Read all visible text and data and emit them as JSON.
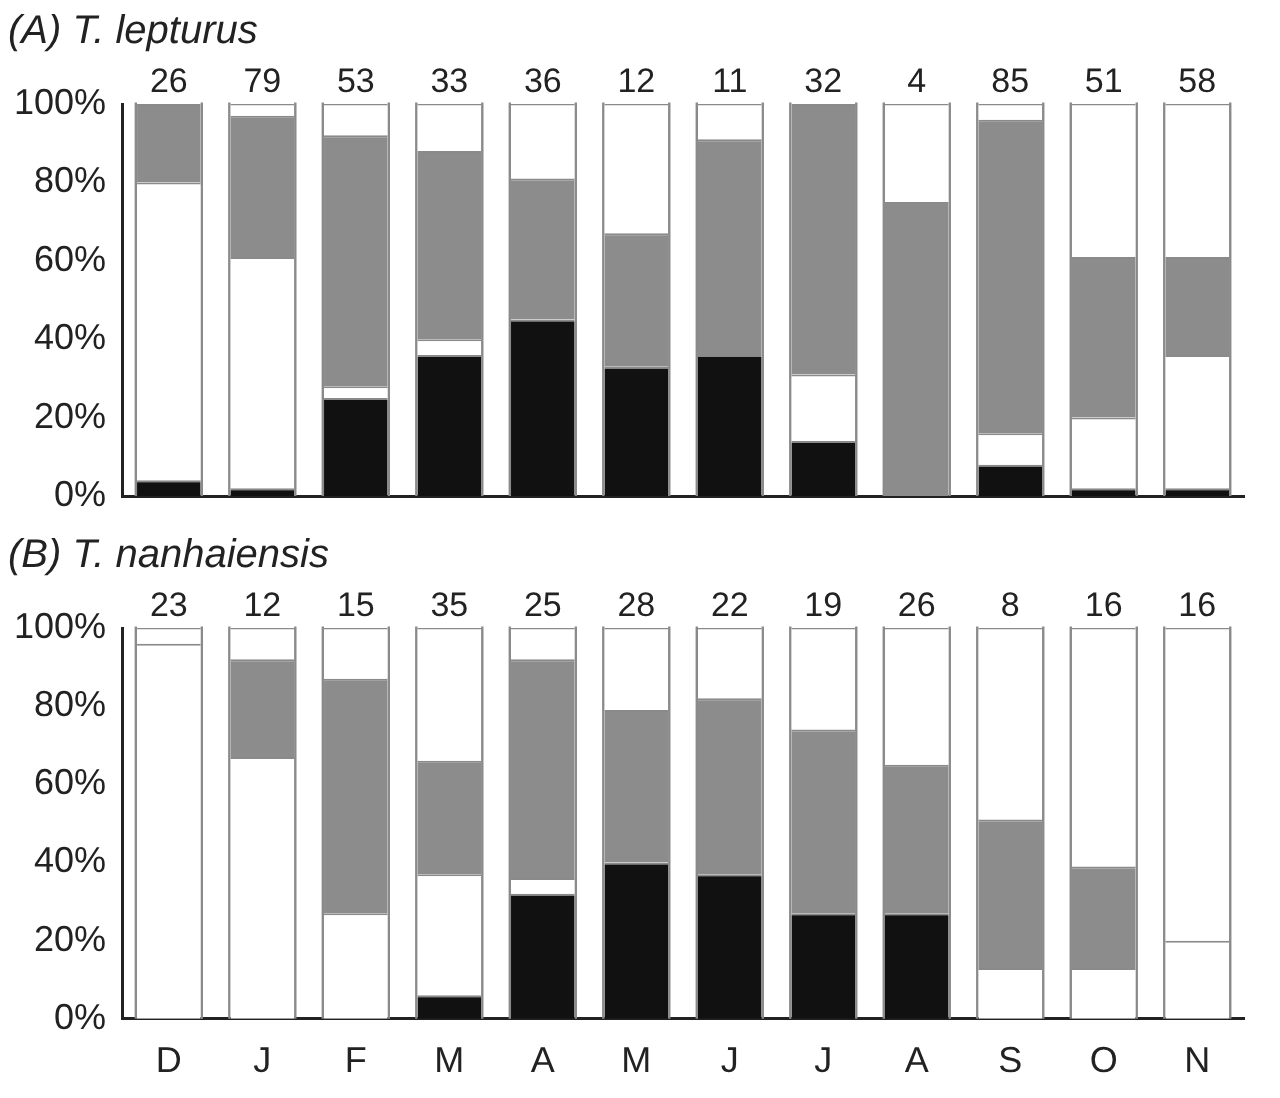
{
  "chart_data": [
    {
      "type": "bar",
      "title": "(A) T. lepturus",
      "categories": [
        null,
        null,
        null,
        null,
        null,
        null,
        null,
        null,
        null,
        null,
        null,
        null
      ],
      "stacked": true,
      "legend": false,
      "grid": false,
      "tick_labels": "y",
      "series": [
        {
          "color": "#111111",
          "values": [
            4,
            2,
            25,
            36,
            45,
            33,
            36,
            14,
            0,
            8,
            2,
            2
          ]
        },
        {
          "color": "#ffffff",
          "values": [
            76,
            59,
            3,
            4,
            0,
            0,
            0,
            17,
            0,
            8,
            18,
            34
          ]
        },
        {
          "color": "#8c8c8c",
          "values": [
            20,
            36,
            64,
            48,
            36,
            34,
            55,
            69,
            75,
            80,
            41,
            25
          ]
        },
        {
          "color": "#ffffff",
          "values": [
            0,
            3,
            8,
            12,
            19,
            33,
            9,
            0,
            25,
            4,
            39,
            39
          ]
        }
      ],
      "annotations": [
        "26",
        "79",
        "53",
        "33",
        "36",
        "12",
        "11",
        "32",
        "4",
        "85",
        "51",
        "58"
      ],
      "ylim": [
        0,
        100
      ],
      "yticks": [
        {
          "value": 0,
          "label": "0%"
        },
        {
          "value": 20,
          "label": "20%"
        },
        {
          "value": 40,
          "label": "40%"
        },
        {
          "value": 60,
          "label": "60%"
        },
        {
          "value": 80,
          "label": "80%"
        },
        {
          "value": 100,
          "label": "100%"
        }
      ]
    },
    {
      "type": "bar",
      "title": "(B) T. nanhaiensis",
      "categories": [
        "D",
        "J",
        "F",
        "M",
        "A",
        "M",
        "J",
        "J",
        "A",
        "S",
        "O",
        "N"
      ],
      "stacked": true,
      "legend": false,
      "grid": false,
      "series": [
        {
          "color": "#111111",
          "values": [
            0,
            0,
            0,
            6,
            32,
            40,
            37,
            27,
            27,
            0,
            0,
            0
          ]
        },
        {
          "color": "#ffffff",
          "values": [
            96,
            67,
            27,
            31,
            4,
            0,
            0,
            0,
            0,
            13,
            13,
            20
          ]
        },
        {
          "color": "#8c8c8c",
          "values": [
            0,
            25,
            60,
            29,
            56,
            39,
            45,
            47,
            38,
            38,
            26,
            0
          ]
        },
        {
          "color": "#ffffff",
          "values": [
            4,
            8,
            13,
            34,
            8,
            21,
            18,
            26,
            35,
            49,
            61,
            80
          ]
        }
      ],
      "annotations": [
        "23",
        "12",
        "15",
        "35",
        "25",
        "28",
        "22",
        "19",
        "26",
        "8",
        "16",
        "16"
      ],
      "ylim": [
        0,
        100
      ],
      "yticks": [
        {
          "value": 0,
          "label": "0%"
        },
        {
          "value": 20,
          "label": "20%"
        },
        {
          "value": 40,
          "label": "40%"
        },
        {
          "value": 60,
          "label": "60%"
        },
        {
          "value": 80,
          "label": "80%"
        },
        {
          "value": 100,
          "label": "100%"
        }
      ]
    }
  ]
}
